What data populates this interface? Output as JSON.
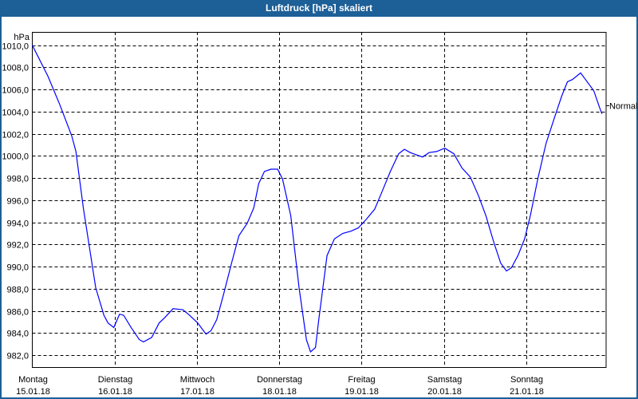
{
  "window": {
    "title": "Luftdruck [hPa] skaliert"
  },
  "colors": {
    "titlebar": "#1d5f97",
    "series": "#0000ff",
    "grid": "#000000"
  },
  "chart_data": {
    "type": "line",
    "title": "Luftdruck [hPa] skaliert",
    "ylabel": "hPa",
    "xlabel": "",
    "ylim": [
      981.0,
      1011.1
    ],
    "xlim": [
      0,
      6.97
    ],
    "yticks": [
      1010,
      1008,
      1006,
      1004,
      1002,
      1000,
      998,
      996,
      994,
      992,
      990,
      988,
      986,
      984,
      982
    ],
    "ytick_labels": [
      "1010,0",
      "1008,0",
      "1006,0",
      "1004,0",
      "1002,0",
      "1000,0",
      "998,0",
      "996,0",
      "994,0",
      "992,0",
      "990,0",
      "988,0",
      "986,0",
      "984,0",
      "982,0"
    ],
    "xticks": [
      {
        "day": "Montag",
        "date": "15.01.18"
      },
      {
        "day": "Dienstag",
        "date": "16.01.18"
      },
      {
        "day": "Mittwoch",
        "date": "17.01.18"
      },
      {
        "day": "Donnerstag",
        "date": "18.01.18"
      },
      {
        "day": "Freitag",
        "date": "19.01.18"
      },
      {
        "day": "Samstag",
        "date": "20.01.18"
      },
      {
        "day": "Sonntag",
        "date": "21.01.18"
      }
    ],
    "grid": true,
    "reference": {
      "label": "Normal",
      "value": 1004.6
    },
    "series": [
      {
        "name": "Luftdruck",
        "x": [
          0,
          0.19,
          0.33,
          0.48,
          0.53,
          0.62,
          0.77,
          0.87,
          0.92,
          0.99,
          1.06,
          1.11,
          1.2,
          1.3,
          1.35,
          1.45,
          1.54,
          1.61,
          1.71,
          1.83,
          1.91,
          2.01,
          2.11,
          2.17,
          2.24,
          2.32,
          2.42,
          2.51,
          2.61,
          2.69,
          2.75,
          2.82,
          2.9,
          2.98,
          3.04,
          3.14,
          3.24,
          3.33,
          3.38,
          3.44,
          3.48,
          3.58,
          3.67,
          3.77,
          3.87,
          3.96,
          4.06,
          4.16,
          4.25,
          4.35,
          4.45,
          4.52,
          4.59,
          4.74,
          4.82,
          4.91,
          5.01,
          5.12,
          5.22,
          5.32,
          5.42,
          5.51,
          5.61,
          5.69,
          5.76,
          5.82,
          5.9,
          5.98,
          6.05,
          6.14,
          6.24,
          6.34,
          6.43,
          6.5,
          6.56,
          6.66,
          6.72,
          6.82,
          6.89,
          6.92
        ],
        "y": [
          1010.0,
          1007.2,
          1004.7,
          1001.8,
          1000.4,
          995.3,
          988.1,
          985.6,
          984.9,
          984.5,
          985.7,
          985.6,
          984.5,
          983.4,
          983.2,
          983.6,
          984.9,
          985.4,
          986.2,
          986.1,
          985.6,
          984.9,
          983.9,
          984.2,
          985.2,
          987.4,
          990.3,
          992.8,
          993.9,
          995.3,
          997.5,
          998.6,
          998.8,
          998.8,
          997.9,
          994.6,
          988.1,
          983.4,
          982.3,
          982.7,
          985.2,
          991.0,
          992.5,
          993.0,
          993.2,
          993.5,
          994.3,
          995.2,
          996.8,
          998.6,
          1000.2,
          1000.6,
          1000.3,
          999.9,
          1000.3,
          1000.4,
          1000.7,
          1000.2,
          998.9,
          998.1,
          996.4,
          994.6,
          992.1,
          990.3,
          989.6,
          989.9,
          991.0,
          992.5,
          994.6,
          997.9,
          1001.1,
          1003.4,
          1005.4,
          1006.7,
          1006.9,
          1007.5,
          1006.9,
          1005.9,
          1004.4,
          1003.8
        ]
      }
    ]
  }
}
